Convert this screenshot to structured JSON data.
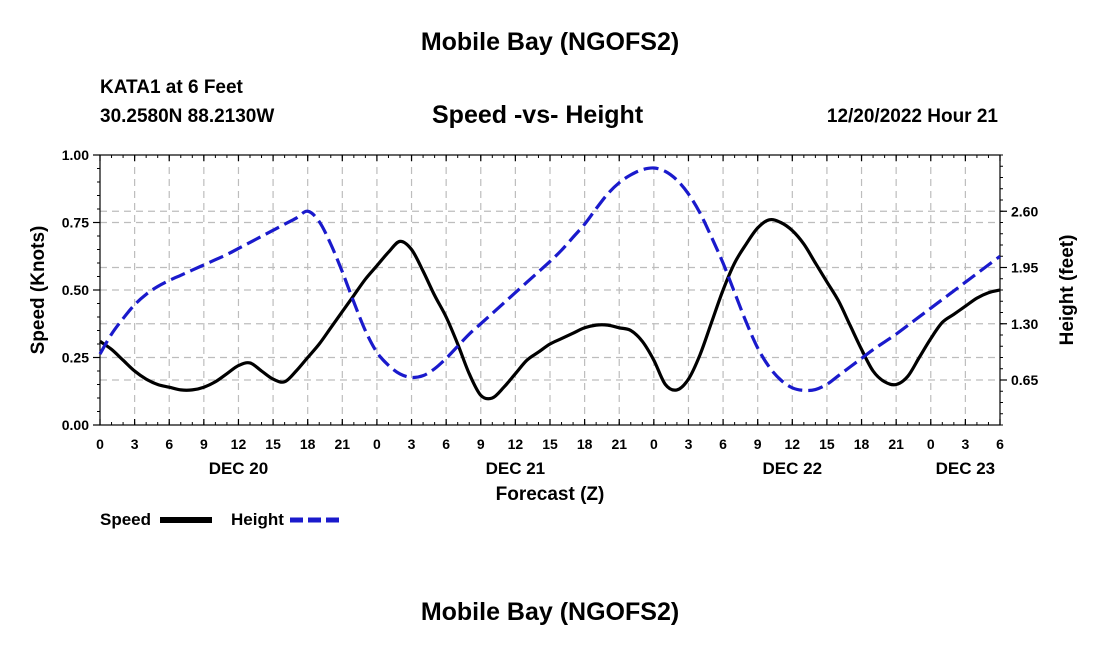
{
  "header": {
    "title": "Mobile Bay (NGOFS2)",
    "station": "KATA1 at 6 Feet",
    "coords": "30.2580N  88.2130W",
    "subtitle": "Speed -vs- Height",
    "datetime": "12/20/2022 Hour 21"
  },
  "footer": {
    "title": "Mobile Bay (NGOFS2)"
  },
  "legend": {
    "speed_label": "Speed",
    "height_label": "Height"
  },
  "colors": {
    "speed": "#000000",
    "height": "#1a1acc",
    "grid": "#bdbdbd"
  },
  "chart_data": {
    "type": "line",
    "title": "Speed -vs- Height",
    "xlabel": "Forecast (Z)",
    "ylabel_left": "Speed (Knots)",
    "ylabel_right": "Height (feet)",
    "x_range_hours": [
      0,
      78
    ],
    "ylim_left": [
      0,
      1.0
    ],
    "ylim_right": [
      0.13,
      3.25
    ],
    "x_tick_labels": [
      "0",
      "3",
      "6",
      "9",
      "12",
      "15",
      "18",
      "21",
      "0",
      "3",
      "6",
      "9",
      "12",
      "15",
      "18",
      "21",
      "0",
      "3",
      "6",
      "9",
      "12",
      "15",
      "18",
      "21",
      "0",
      "3",
      "6"
    ],
    "date_labels": [
      {
        "hour": 12,
        "label": "DEC 20"
      },
      {
        "hour": 36,
        "label": "DEC 21"
      },
      {
        "hour": 60,
        "label": "DEC 22"
      },
      {
        "hour": 75,
        "label": "DEC 23"
      }
    ],
    "left_ticks": [
      "0.00",
      "0.25",
      "0.50",
      "0.75",
      "1.00"
    ],
    "right_ticks": [
      "0.65",
      "1.30",
      "1.95",
      "2.60"
    ],
    "series": [
      {
        "name": "Speed",
        "axis": "left",
        "x": [
          0,
          1,
          2,
          3,
          4,
          5,
          6,
          7,
          8,
          9,
          10,
          11,
          12,
          13,
          14,
          15,
          16,
          17,
          18,
          19,
          20,
          21,
          22,
          23,
          24,
          25,
          26,
          27,
          28,
          29,
          30,
          31,
          32,
          33,
          34,
          35,
          36,
          37,
          38,
          39,
          40,
          41,
          42,
          43,
          44,
          45,
          46,
          47,
          48,
          49,
          50,
          51,
          52,
          53,
          54,
          55,
          56,
          57,
          58,
          59,
          60,
          61,
          62,
          63,
          64,
          65,
          66,
          67,
          68,
          69,
          70,
          71,
          72,
          73,
          74,
          75,
          76,
          77,
          78
        ],
        "values": [
          0.31,
          0.28,
          0.24,
          0.2,
          0.17,
          0.15,
          0.14,
          0.13,
          0.13,
          0.14,
          0.16,
          0.19,
          0.22,
          0.23,
          0.2,
          0.17,
          0.16,
          0.2,
          0.25,
          0.3,
          0.36,
          0.42,
          0.48,
          0.54,
          0.59,
          0.64,
          0.68,
          0.65,
          0.57,
          0.48,
          0.4,
          0.3,
          0.19,
          0.11,
          0.1,
          0.14,
          0.19,
          0.24,
          0.27,
          0.3,
          0.32,
          0.34,
          0.36,
          0.37,
          0.37,
          0.36,
          0.35,
          0.31,
          0.24,
          0.15,
          0.13,
          0.17,
          0.26,
          0.38,
          0.5,
          0.6,
          0.67,
          0.73,
          0.76,
          0.75,
          0.72,
          0.67,
          0.6,
          0.53,
          0.46,
          0.37,
          0.28,
          0.2,
          0.16,
          0.15,
          0.18,
          0.25,
          0.32,
          0.38,
          0.41,
          0.44,
          0.47,
          0.49,
          0.5
        ]
      },
      {
        "name": "Height",
        "axis": "right",
        "x": [
          0,
          1,
          2,
          3,
          4,
          5,
          6,
          7,
          8,
          9,
          10,
          11,
          12,
          13,
          14,
          15,
          16,
          17,
          18,
          19,
          20,
          21,
          22,
          23,
          24,
          25,
          26,
          27,
          28,
          29,
          30,
          31,
          32,
          33,
          34,
          35,
          36,
          37,
          38,
          39,
          40,
          41,
          42,
          43,
          44,
          45,
          46,
          47,
          48,
          49,
          50,
          51,
          52,
          53,
          54,
          55,
          56,
          57,
          58,
          59,
          60,
          61,
          62,
          63,
          64,
          65,
          66,
          67,
          68,
          69,
          70,
          71,
          72,
          73,
          74,
          75,
          76,
          77,
          78
        ],
        "values": [
          0.95,
          1.18,
          1.36,
          1.52,
          1.64,
          1.73,
          1.8,
          1.86,
          1.92,
          1.98,
          2.04,
          2.1,
          2.17,
          2.24,
          2.31,
          2.38,
          2.45,
          2.52,
          2.6,
          2.48,
          2.22,
          1.9,
          1.55,
          1.22,
          0.97,
          0.82,
          0.72,
          0.68,
          0.7,
          0.78,
          0.9,
          1.04,
          1.18,
          1.3,
          1.42,
          1.54,
          1.66,
          1.78,
          1.9,
          2.02,
          2.15,
          2.3,
          2.45,
          2.63,
          2.8,
          2.93,
          3.02,
          3.08,
          3.1,
          3.06,
          2.96,
          2.8,
          2.58,
          2.3,
          2.0,
          1.66,
          1.32,
          1.02,
          0.8,
          0.65,
          0.56,
          0.53,
          0.54,
          0.6,
          0.7,
          0.8,
          0.9,
          1.0,
          1.09,
          1.18,
          1.28,
          1.38,
          1.48,
          1.58,
          1.68,
          1.78,
          1.88,
          1.98,
          2.08
        ]
      }
    ]
  }
}
